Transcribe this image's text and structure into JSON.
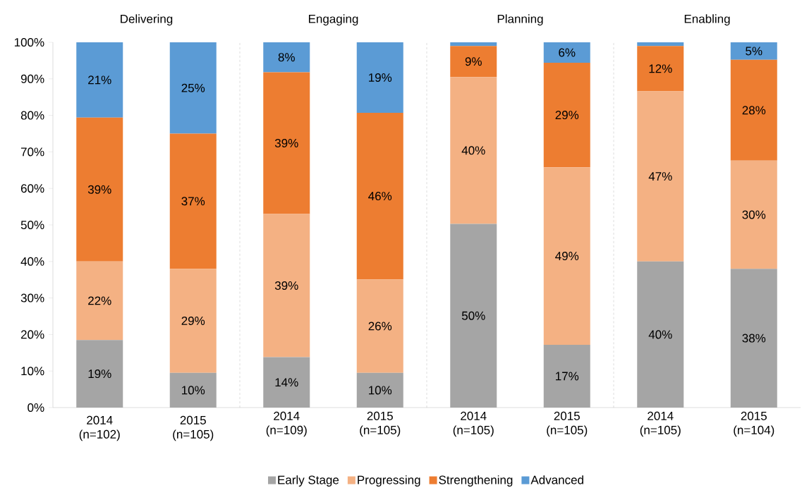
{
  "chart_data": [
    {
      "type": "bar",
      "stacked": true,
      "title": "Delivering",
      "categories": [
        "2014 (n=102)",
        "2015 (n=105)"
      ],
      "ylim": [
        0,
        100
      ],
      "yticks": [
        {
          "value": 0,
          "label": "0%"
        },
        {
          "value": 10,
          "label": "10%"
        },
        {
          "value": 20,
          "label": "20%"
        },
        {
          "value": 30,
          "label": "30%"
        },
        {
          "value": 40,
          "label": "40%"
        },
        {
          "value": 50,
          "label": "50%"
        },
        {
          "value": 60,
          "label": "60%"
        },
        {
          "value": 70,
          "label": "70%"
        },
        {
          "value": 80,
          "label": "80%"
        },
        {
          "value": 90,
          "label": "90%"
        },
        {
          "value": 100,
          "label": "100%"
        }
      ],
      "legend": "bottom",
      "series": [
        {
          "name": "Early Stage",
          "color": "#a5a5a5",
          "values": [
            18.5,
            9.5
          ],
          "value_labels": [
            "19%",
            "10%"
          ]
        },
        {
          "name": "Progressing",
          "color": "#f4b183",
          "values": [
            21.5,
            28.5
          ],
          "value_labels": [
            "22%",
            "29%"
          ]
        },
        {
          "name": "Strengthening",
          "color": "#ed7d31",
          "values": [
            39.4,
            37
          ],
          "value_labels": [
            "39%",
            "37%"
          ]
        },
        {
          "name": "Advanced",
          "color": "#5b9bd5",
          "values": [
            20.6,
            25
          ],
          "value_labels": [
            "21%",
            "25%"
          ]
        }
      ]
    },
    {
      "type": "bar",
      "stacked": true,
      "title": "Engaging",
      "categories": [
        "2014 (n=109)",
        "2015 (n=105)"
      ],
      "ylim": [
        0,
        100
      ],
      "tick_labels": "x",
      "series": [
        {
          "color": "#a5a5a5",
          "values": [
            13.8,
            9.5
          ],
          "value_labels": [
            "14%",
            "10%"
          ]
        },
        {
          "color": "#f4b183",
          "values": [
            39.2,
            25.6
          ],
          "value_labels": [
            "39%",
            "26%"
          ]
        },
        {
          "color": "#ed7d31",
          "values": [
            38.8,
            45.6
          ],
          "value_labels": [
            "39%",
            "46%"
          ]
        },
        {
          "color": "#5b9bd5",
          "values": [
            8.2,
            19.3
          ],
          "value_labels": [
            "8%",
            "19%"
          ]
        }
      ]
    },
    {
      "type": "bar",
      "stacked": true,
      "title": "Planning",
      "categories": [
        "2014 (n=105)",
        "2015 (n=105)"
      ],
      "ylim": [
        0,
        100
      ],
      "tick_labels": "x",
      "series": [
        {
          "color": "#a5a5a5",
          "values": [
            50.3,
            17.2
          ],
          "value_labels": [
            "50%",
            "17%"
          ]
        },
        {
          "color": "#f4b183",
          "values": [
            40.2,
            48.6
          ],
          "value_labels": [
            "40%",
            "49%"
          ]
        },
        {
          "color": "#ed7d31",
          "values": [
            8.5,
            28.6
          ],
          "value_labels": [
            "9%",
            "29%"
          ]
        },
        {
          "color": "#5b9bd5",
          "values": [
            1.0,
            5.6
          ],
          "value_labels": [
            null,
            "6%"
          ]
        }
      ]
    },
    {
      "type": "bar",
      "stacked": true,
      "title": "Enabling",
      "categories": [
        "2014 (n=105)",
        "2015 (n=104)"
      ],
      "ylim": [
        0,
        100
      ],
      "tick_labels": "x",
      "series": [
        {
          "color": "#a5a5a5",
          "values": [
            40,
            38
          ],
          "value_labels": [
            "40%",
            "38%"
          ]
        },
        {
          "color": "#f4b183",
          "values": [
            46.6,
            29.6
          ],
          "value_labels": [
            "47%",
            "30%"
          ]
        },
        {
          "color": "#ed7d31",
          "values": [
            12.4,
            27.6
          ],
          "value_labels": [
            "12%",
            "28%"
          ]
        },
        {
          "color": "#5b9bd5",
          "values": [
            1.0,
            4.8
          ],
          "value_labels": [
            null,
            "5%"
          ]
        }
      ]
    }
  ]
}
